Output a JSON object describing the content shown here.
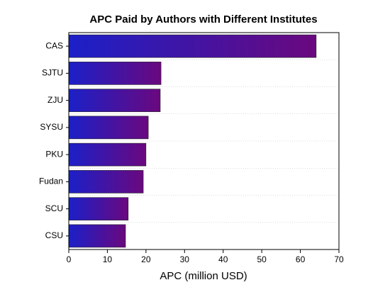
{
  "chart_data": {
    "type": "barh",
    "title": "APC Paid by Authors with Different Institutes",
    "x_label": "APC (million USD)",
    "categories": [
      "CAS",
      "SJTU",
      "ZJU",
      "SYSU",
      "PKU",
      "Fudan",
      "SCU",
      "CSU"
    ],
    "values": [
      64.1,
      23.9,
      23.7,
      20.6,
      20.0,
      19.3,
      15.4,
      14.7
    ],
    "gradient": [
      "#1b20c8",
      "#6a087e"
    ],
    "xlim": [
      0,
      70
    ],
    "xticks": [
      0,
      10,
      20,
      30,
      40,
      50,
      60,
      70
    ]
  }
}
